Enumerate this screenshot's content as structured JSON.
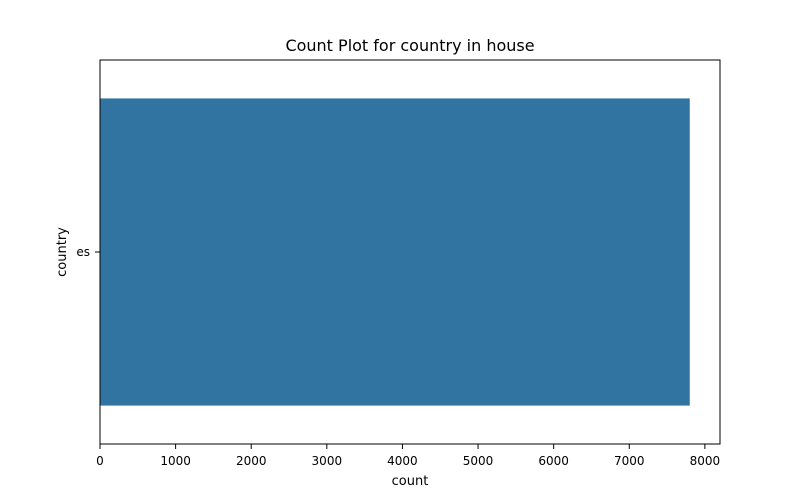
{
  "chart_data": {
    "type": "bar",
    "orientation": "horizontal",
    "title": "Count Plot for country in house",
    "xlabel": "count",
    "ylabel": "country",
    "categories": [
      "es"
    ],
    "values": [
      7800
    ],
    "xlim": [
      0,
      8200
    ],
    "xticks": [
      0,
      1000,
      2000,
      3000,
      4000,
      5000,
      6000,
      7000,
      8000
    ],
    "grid": false,
    "legend": "none",
    "bar_color": "#3274a1"
  }
}
